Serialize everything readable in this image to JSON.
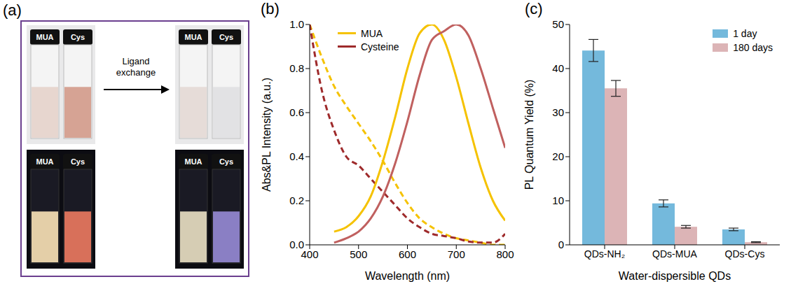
{
  "chart_data": [
    {
      "type": "photo_panel",
      "panel_label": "(a)",
      "before": [
        "MUA",
        "Cys"
      ],
      "after": [
        "MUA",
        "Cys"
      ],
      "arrow_label": "Ligand exchange"
    },
    {
      "type": "line",
      "panel_label": "(b)",
      "x_label": "Wavelength (nm)",
      "y_label": "Abs&PL Intensity (a.u.)",
      "x": [
        400,
        425,
        450,
        475,
        500,
        525,
        550,
        575,
        600,
        625,
        650,
        675,
        700,
        725,
        750,
        775,
        800
      ],
      "xlim": [
        400,
        800
      ],
      "xticks": [
        400,
        500,
        600,
        700,
        800
      ],
      "ylim": [
        0,
        1
      ],
      "yticks": [
        {
          "value": 0,
          "label": "0.0"
        },
        0.2,
        0.4,
        0.6,
        0.8,
        {
          "value": 1,
          "label": "1.0"
        }
      ],
      "legend": "top",
      "series": [
        {
          "name": "MUA",
          "color": "#f5c200",
          "line_style": "dashed",
          "values": [
            1.0,
            0.85,
            0.72,
            0.63,
            0.55,
            0.47,
            0.38,
            0.28,
            0.19,
            0.12,
            0.08,
            0.05,
            0.03,
            0.02,
            0.01,
            0.0,
            0.0
          ]
        },
        {
          "name": "Cysteine",
          "color": "#9e2a2b",
          "line_style": "dashed",
          "values": [
            1.0,
            0.7,
            0.52,
            0.4,
            0.36,
            0.3,
            0.24,
            0.18,
            0.12,
            0.08,
            0.05,
            0.04,
            0.03,
            0.015,
            0.01,
            0.01,
            0.05
          ]
        },
        {
          "name": "MUA",
          "color": "#f5c200",
          "line_style": "solid",
          "values": [
            null,
            null,
            0.06,
            0.08,
            0.13,
            0.22,
            0.38,
            0.58,
            0.8,
            0.96,
            1.0,
            0.93,
            0.76,
            0.55,
            0.35,
            0.2,
            0.11
          ]
        },
        {
          "name": "Cysteine",
          "color": "#c0605f",
          "line_style": "solid",
          "values": [
            null,
            null,
            0.01,
            0.03,
            0.06,
            0.12,
            0.22,
            0.37,
            0.56,
            0.77,
            0.93,
            0.97,
            1.0,
            0.95,
            0.8,
            0.62,
            0.44
          ]
        }
      ]
    },
    {
      "type": "bar",
      "panel_label": "(c)",
      "x_label": "Water-dispersible QDs",
      "y_label": "PL Quantum Yield (%)",
      "categories": [
        "QDs-NH₂",
        "QDs-MUA",
        "QDs-Cys"
      ],
      "ylim": [
        0,
        50
      ],
      "yticks": [
        0,
        10,
        20,
        30,
        40,
        50
      ],
      "legend": "upper right",
      "series": [
        {
          "name": "1 day",
          "color": "#74b9dc",
          "values": [
            44.1,
            9.4,
            3.5
          ],
          "errors": [
            2.5,
            0.8,
            0.3
          ]
        },
        {
          "name": "180 days",
          "color": "#dcb4b6",
          "values": [
            35.5,
            4.1,
            0.6
          ],
          "errors": [
            1.8,
            0.3,
            0.1
          ]
        }
      ]
    }
  ]
}
